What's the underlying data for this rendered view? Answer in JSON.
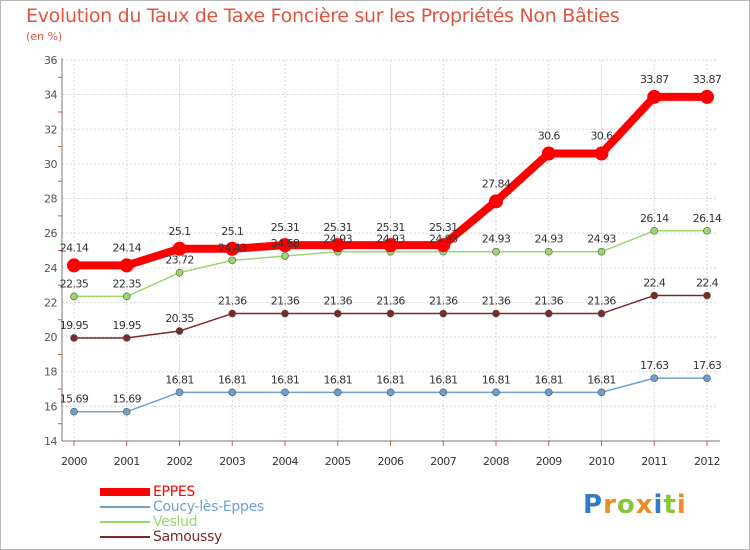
{
  "header": {
    "title": "Evolution du Taux de Taxe Foncière sur les Propriétés Non Bâties",
    "unit": "(en %)"
  },
  "chart_data": {
    "type": "line",
    "title": "Evolution du Taux de Taxe Foncière sur les Propriétés Non Bâties",
    "ylabel": "(en %)",
    "xlabel": "",
    "ylim": [
      14,
      36
    ],
    "yticks": [
      14,
      16,
      18,
      20,
      22,
      24,
      26,
      28,
      30,
      32,
      34,
      36
    ],
    "categories": [
      "2000",
      "2001",
      "2002",
      "2003",
      "2004",
      "2005",
      "2006",
      "2007",
      "2008",
      "2009",
      "2010",
      "2011",
      "2012"
    ],
    "series": [
      {
        "name": "EPPES",
        "color": "#ff0000",
        "values": [
          24.14,
          24.14,
          25.1,
          25.1,
          25.31,
          25.31,
          25.31,
          25.31,
          27.84,
          30.6,
          30.6,
          33.87,
          33.87
        ]
      },
      {
        "name": "Coucy-lès-Eppes",
        "color": "#6da0cf",
        "values": [
          15.69,
          15.69,
          16.81,
          16.81,
          16.81,
          16.81,
          16.81,
          16.81,
          16.81,
          16.81,
          16.81,
          17.63,
          17.63
        ]
      },
      {
        "name": "Veslud",
        "color": "#9ad86c",
        "values": [
          22.35,
          22.35,
          23.72,
          24.43,
          24.68,
          24.93,
          24.93,
          24.93,
          24.93,
          24.93,
          24.93,
          26.14,
          26.14
        ]
      },
      {
        "name": "Samoussy",
        "color": "#7a2a2a",
        "values": [
          19.95,
          19.95,
          20.35,
          21.36,
          21.36,
          21.36,
          21.36,
          21.36,
          21.36,
          21.36,
          21.36,
          22.4,
          22.4
        ]
      }
    ],
    "grid": true,
    "legend": "bottom-left"
  },
  "brand": {
    "logo_letters": [
      "P",
      "r",
      "o",
      "x",
      "i",
      "t",
      "i"
    ],
    "logo_colors": [
      "#2f7cc4",
      "#f08a24",
      "#8ac43f",
      "#f08a24",
      "#2f7cc4",
      "#8ac43f",
      "#f08a24"
    ]
  }
}
